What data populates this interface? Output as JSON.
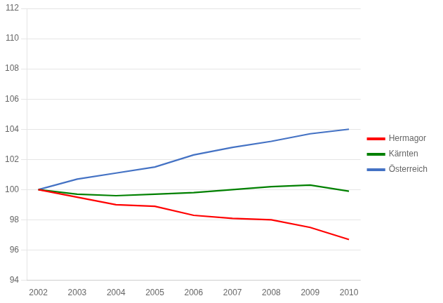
{
  "chart_data": {
    "type": "line",
    "x": [
      2002,
      2003,
      2004,
      2005,
      2006,
      2007,
      2008,
      2009,
      2010
    ],
    "series": [
      {
        "name": "Hermagor",
        "color": "#FF0000",
        "values": [
          100.0,
          99.5,
          99.0,
          98.9,
          98.3,
          98.1,
          98.0,
          97.5,
          96.7
        ]
      },
      {
        "name": "Kärnten",
        "color": "#008000",
        "values": [
          100.0,
          99.7,
          99.6,
          99.7,
          99.8,
          100.0,
          100.2,
          100.3,
          99.9
        ]
      },
      {
        "name": "Österreich",
        "color": "#4472C4",
        "values": [
          100.0,
          100.7,
          101.1,
          101.5,
          102.3,
          102.8,
          103.2,
          103.7,
          104.0
        ]
      }
    ],
    "xlim": [
      2001.7,
      2010.3
    ],
    "xticks": [
      2002,
      2003,
      2004,
      2005,
      2006,
      2007,
      2008,
      2009,
      2010
    ],
    "ylim": [
      94,
      112
    ],
    "yticks": [
      94,
      96,
      98,
      100,
      102,
      104,
      106,
      108,
      110,
      112
    ],
    "grid": "y",
    "legend": "right"
  }
}
